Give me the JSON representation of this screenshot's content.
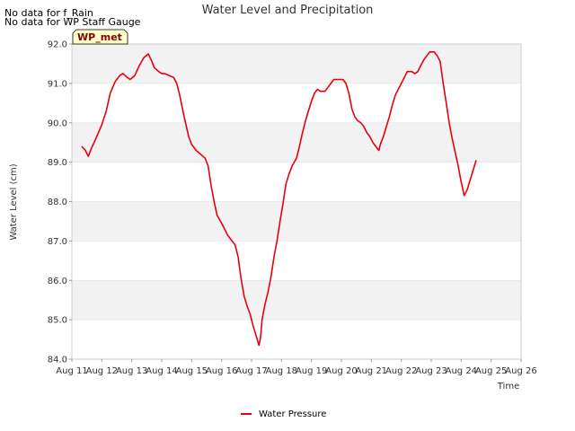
{
  "notes": [
    "No data for f_Rain",
    "No data for WP Staff Gauge"
  ],
  "badge": {
    "label": "WP_met",
    "bg": "#ffffcc",
    "text_color": "#8b0000"
  },
  "colors": {
    "series": "#e8000b",
    "band": "#f2f2f2",
    "grid": "#dddddd"
  },
  "chart_data": {
    "type": "line",
    "title": "Water Level and Precipitation",
    "xlabel": "Time",
    "ylabel": "Water Level (cm)",
    "xlim": [
      11,
      26
    ],
    "ylim": [
      84.0,
      92.0
    ],
    "x_ticks": [
      {
        "v": 11,
        "label": "Aug 11"
      },
      {
        "v": 12,
        "label": "Aug 12"
      },
      {
        "v": 13,
        "label": "Aug 13"
      },
      {
        "v": 14,
        "label": "Aug 14"
      },
      {
        "v": 15,
        "label": "Aug 15"
      },
      {
        "v": 16,
        "label": "Aug 16"
      },
      {
        "v": 17,
        "label": "Aug 17"
      },
      {
        "v": 18,
        "label": "Aug 18"
      },
      {
        "v": 19,
        "label": "Aug 19"
      },
      {
        "v": 20,
        "label": "Aug 20"
      },
      {
        "v": 21,
        "label": "Aug 21"
      },
      {
        "v": 22,
        "label": "Aug 22"
      },
      {
        "v": 23,
        "label": "Aug 23"
      },
      {
        "v": 24,
        "label": "Aug 24"
      },
      {
        "v": 25,
        "label": "Aug 25"
      },
      {
        "v": 26,
        "label": "Aug 26"
      }
    ],
    "y_ticks": [
      "84.0",
      "85.0",
      "86.0",
      "87.0",
      "88.0",
      "89.0",
      "90.0",
      "91.0",
      "92.0"
    ],
    "legend": {
      "placement": "bottom-center"
    },
    "series": [
      {
        "name": "Water Pressure",
        "points": [
          [
            11.33,
            89.4
          ],
          [
            11.45,
            89.3
          ],
          [
            11.55,
            89.15
          ],
          [
            11.65,
            89.35
          ],
          [
            11.8,
            89.6
          ],
          [
            12.0,
            89.95
          ],
          [
            12.15,
            90.3
          ],
          [
            12.28,
            90.75
          ],
          [
            12.45,
            91.05
          ],
          [
            12.6,
            91.2
          ],
          [
            12.7,
            91.25
          ],
          [
            12.85,
            91.15
          ],
          [
            12.95,
            91.1
          ],
          [
            13.1,
            91.2
          ],
          [
            13.25,
            91.45
          ],
          [
            13.4,
            91.65
          ],
          [
            13.55,
            91.75
          ],
          [
            13.65,
            91.6
          ],
          [
            13.75,
            91.4
          ],
          [
            13.9,
            91.3
          ],
          [
            14.0,
            91.25
          ],
          [
            14.1,
            91.25
          ],
          [
            14.25,
            91.2
          ],
          [
            14.4,
            91.15
          ],
          [
            14.5,
            91.0
          ],
          [
            14.6,
            90.7
          ],
          [
            14.75,
            90.15
          ],
          [
            14.9,
            89.65
          ],
          [
            15.0,
            89.45
          ],
          [
            15.15,
            89.3
          ],
          [
            15.3,
            89.2
          ],
          [
            15.45,
            89.1
          ],
          [
            15.55,
            88.9
          ],
          [
            15.65,
            88.4
          ],
          [
            15.75,
            88.0
          ],
          [
            15.85,
            87.65
          ],
          [
            16.0,
            87.45
          ],
          [
            16.1,
            87.3
          ],
          [
            16.2,
            87.15
          ],
          [
            16.35,
            87.0
          ],
          [
            16.45,
            86.9
          ],
          [
            16.55,
            86.6
          ],
          [
            16.65,
            86.05
          ],
          [
            16.75,
            85.6
          ],
          [
            16.85,
            85.35
          ],
          [
            16.95,
            85.15
          ],
          [
            17.05,
            84.85
          ],
          [
            17.15,
            84.6
          ],
          [
            17.25,
            84.35
          ],
          [
            17.3,
            84.55
          ],
          [
            17.35,
            85.0
          ],
          [
            17.45,
            85.4
          ],
          [
            17.55,
            85.7
          ],
          [
            17.65,
            86.1
          ],
          [
            17.75,
            86.6
          ],
          [
            17.85,
            87.0
          ],
          [
            17.95,
            87.5
          ],
          [
            18.05,
            87.95
          ],
          [
            18.15,
            88.45
          ],
          [
            18.25,
            88.7
          ],
          [
            18.35,
            88.9
          ],
          [
            18.5,
            89.1
          ],
          [
            18.6,
            89.4
          ],
          [
            18.7,
            89.75
          ],
          [
            18.8,
            90.05
          ],
          [
            18.9,
            90.3
          ],
          [
            19.0,
            90.55
          ],
          [
            19.1,
            90.75
          ],
          [
            19.2,
            90.85
          ],
          [
            19.3,
            90.8
          ],
          [
            19.45,
            90.8
          ],
          [
            19.55,
            90.9
          ],
          [
            19.65,
            91.0
          ],
          [
            19.75,
            91.1
          ],
          [
            19.9,
            91.1
          ],
          [
            20.05,
            91.1
          ],
          [
            20.15,
            91.0
          ],
          [
            20.25,
            90.75
          ],
          [
            20.35,
            90.35
          ],
          [
            20.45,
            90.15
          ],
          [
            20.55,
            90.05
          ],
          [
            20.65,
            90.0
          ],
          [
            20.75,
            89.9
          ],
          [
            20.85,
            89.75
          ],
          [
            20.95,
            89.65
          ],
          [
            21.05,
            89.5
          ],
          [
            21.15,
            89.4
          ],
          [
            21.25,
            89.3
          ],
          [
            21.3,
            89.45
          ],
          [
            21.4,
            89.65
          ],
          [
            21.5,
            89.9
          ],
          [
            21.6,
            90.15
          ],
          [
            21.7,
            90.45
          ],
          [
            21.8,
            90.7
          ],
          [
            21.9,
            90.85
          ],
          [
            22.0,
            91.0
          ],
          [
            22.1,
            91.15
          ],
          [
            22.2,
            91.3
          ],
          [
            22.35,
            91.3
          ],
          [
            22.45,
            91.25
          ],
          [
            22.55,
            91.3
          ],
          [
            22.65,
            91.45
          ],
          [
            22.75,
            91.6
          ],
          [
            22.85,
            91.7
          ],
          [
            22.95,
            91.8
          ],
          [
            23.1,
            91.8
          ],
          [
            23.2,
            91.7
          ],
          [
            23.3,
            91.55
          ],
          [
            23.4,
            91.0
          ],
          [
            23.5,
            90.5
          ],
          [
            23.6,
            90.0
          ],
          [
            23.7,
            89.6
          ],
          [
            23.8,
            89.25
          ],
          [
            23.9,
            88.9
          ],
          [
            24.0,
            88.5
          ],
          [
            24.1,
            88.15
          ],
          [
            24.2,
            88.3
          ],
          [
            24.3,
            88.55
          ],
          [
            24.4,
            88.8
          ],
          [
            24.5,
            89.05
          ]
        ]
      }
    ]
  }
}
